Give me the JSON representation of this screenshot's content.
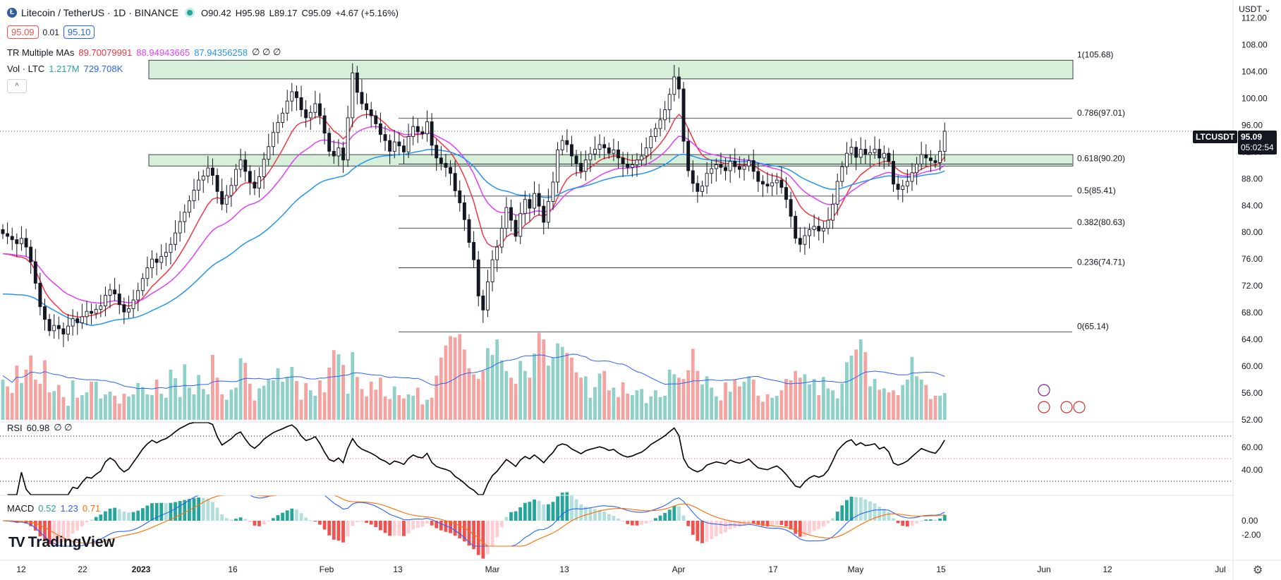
{
  "header": {
    "symbol_title": "Litecoin / TetherUS · 1D · BINANCE",
    "ohlc": {
      "o_label": "O",
      "o": "90.42",
      "h_label": "H",
      "h": "95.98",
      "l_label": "L",
      "l": "89.17",
      "c_label": "C",
      "c": "95.09",
      "change": "+4.67 (+5.16%)"
    },
    "bid": "95.09",
    "spread": "0.01",
    "ask": "95.10",
    "currency": "USDT"
  },
  "indicators": {
    "mas": {
      "name": "TR Multiple MAs",
      "v1": "89.70079991",
      "v2": "88.94943665",
      "v3": "87.94356258",
      "rest": "∅ ∅ ∅"
    },
    "vol": {
      "name": "Vol · LTC",
      "v1": "1.217M",
      "v2": "729.708K"
    },
    "rsi": {
      "name": "RSI",
      "value": "60.98",
      "rest": "∅ ∅"
    },
    "macd": {
      "name": "MACD",
      "v1": "0.52",
      "v2": "1.23",
      "v3": "0.71"
    }
  },
  "last_price": {
    "symbol": "LTCUSDT",
    "price": "95.09",
    "countdown": "05:02:54"
  },
  "branding": {
    "logo_text": "TradingView"
  },
  "colors": {
    "up": "#26a69a",
    "down": "#ef5350",
    "ma_fast": "#f23645",
    "ma_mid": "#e040fb",
    "ma_slow": "#2196f3",
    "vol_up": "#8fd0c8",
    "vol_down": "#f4a3a1",
    "zone_fill": "#d7efd9",
    "rsi_line": "#000000",
    "macd_line": "#2962ff",
    "signal_line": "#ff6d00"
  },
  "chart_data": {
    "type": "candlestick",
    "x_ticks": [
      "12",
      "22",
      "2023",
      "16",
      "Feb",
      "13",
      "Mar",
      "13",
      "Apr",
      "17",
      "May",
      "15",
      "Jun",
      "12",
      "Jul"
    ],
    "y_ticks": [
      "112.00",
      "108.00",
      "104.00",
      "100.00",
      "96.00",
      "92.00",
      "88.00",
      "84.00",
      "80.00",
      "76.00",
      "72.00",
      "68.00",
      "64.00",
      "60.00",
      "56.00",
      "52.00"
    ],
    "ylim": [
      52,
      113
    ],
    "fib_levels": [
      {
        "label": "1(105.68)",
        "value": 105.68
      },
      {
        "label": "0.786(97.01)",
        "value": 97.01
      },
      {
        "label": "0.618(90.20)",
        "value": 90.2
      },
      {
        "label": "0.5(85.41)",
        "value": 85.41
      },
      {
        "label": "0.382(80.63)",
        "value": 80.63
      },
      {
        "label": "0.236(74.71)",
        "value": 74.71
      },
      {
        "label": "0(65.14)",
        "value": 65.14
      }
    ],
    "zones": [
      {
        "from": 102.9,
        "to": 105.7
      },
      {
        "from": 89.9,
        "to": 91.6
      }
    ],
    "rsi_ticks": [
      "60.00",
      "40.00"
    ],
    "rsi_levels": [
      70,
      50,
      30
    ],
    "macd_ticks": [
      "0.00",
      "-2.00"
    ],
    "closes": [
      79.8,
      79.4,
      78.9,
      78.3,
      79.1,
      77.8,
      75.6,
      72.4,
      68.9,
      67.0,
      65.3,
      66.1,
      65.6,
      64.8,
      66.0,
      67.1,
      66.5,
      67.4,
      68.2,
      67.9,
      68.5,
      69.0,
      70.6,
      71.4,
      70.8,
      69.2,
      68.1,
      68.6,
      69.9,
      71.3,
      73.1,
      74.7,
      76.0,
      75.5,
      76.4,
      77.0,
      78.2,
      79.9,
      81.6,
      83.0,
      84.7,
      86.3,
      87.8,
      88.4,
      89.6,
      88.5,
      86.1,
      84.2,
      85.5,
      87.0,
      89.4,
      90.8,
      89.1,
      87.5,
      86.6,
      88.3,
      90.9,
      92.8,
      94.9,
      96.4,
      97.8,
      99.6,
      101.0,
      100.1,
      98.3,
      97.1,
      97.9,
      99.2,
      97.4,
      94.8,
      92.1,
      91.4,
      92.6,
      90.8,
      97.1,
      103.8,
      100.9,
      99.2,
      98.3,
      97.4,
      96.2,
      94.6,
      93.7,
      92.1,
      93.5,
      92.9,
      92.0,
      94.3,
      95.8,
      95.0,
      94.7,
      96.5,
      93.0,
      91.1,
      90.3,
      89.7,
      88.8,
      86.2,
      84.4,
      81.9,
      78.5,
      75.9,
      70.5,
      68.4,
      72.6,
      75.9,
      77.8,
      80.6,
      83.7,
      81.8,
      79.4,
      82.8,
      84.9,
      83.6,
      85.8,
      83.9,
      81.5,
      84.6,
      87.5,
      92.3,
      93.7,
      93.1,
      91.4,
      90.3,
      89.1,
      90.8,
      91.7,
      92.4,
      93.1,
      92.6,
      91.8,
      92.3,
      91.1,
      90.2,
      89.7,
      90.1,
      90.8,
      91.4,
      92.6,
      94.3,
      95.5,
      96.8,
      98.3,
      100.6,
      103.2,
      101.4,
      93.6,
      89.2,
      87.3,
      86.1,
      86.9,
      88.8,
      89.5,
      90.1,
      89.7,
      89.2,
      90.6,
      89.8,
      89.4,
      89.9,
      90.7,
      89.1,
      87.6,
      87.2,
      86.9,
      87.4,
      87.8,
      86.7,
      84.9,
      82.4,
      79.1,
      78.2,
      79.5,
      80.4,
      80.9,
      80.2,
      80.6,
      81.8,
      84.2,
      87.6,
      89.8,
      91.8,
      92.7,
      91.2,
      92.4,
      91.6,
      91.9,
      92.4,
      91.1,
      91.8,
      90.6,
      87.2,
      86.4,
      86.9,
      87.6,
      88.9,
      90.2,
      91.6,
      91.1,
      90.7,
      90.4,
      92.1,
      95.09
    ],
    "volumes": [
      58.0,
      57.0,
      56.0,
      60.1,
      57.5,
      59.5,
      61.6,
      58.0,
      57.4,
      60.9,
      56.1,
      56.3,
      57.2,
      55.4,
      54.1,
      57.9,
      55.3,
      55.7,
      56.1,
      57.7,
      57.7,
      55.2,
      55.8,
      56.2,
      55.6,
      54.4,
      55.9,
      55.5,
      55.8,
      57.5,
      56.9,
      55.8,
      55.7,
      58.0,
      55.9,
      55.3,
      59.5,
      58.2,
      55.4,
      60.3,
      56.8,
      55.8,
      58.7,
      56.6,
      55.8,
      61.7,
      58.3,
      55.8,
      55.0,
      56.5,
      56.8,
      61.2,
      60.5,
      57.4,
      54.9,
      56.7,
      57.1,
      58.0,
      57.9,
      59.7,
      57.7,
      58.4,
      59.9,
      57.8,
      55.0,
      57.5,
      56.4,
      55.6,
      57.9,
      56.1,
      59.8,
      62.4,
      61.8,
      60.2,
      55.9,
      62.1,
      58.4,
      56.6,
      55.5,
      57.7,
      56.5,
      58.3,
      55.5,
      55.1,
      57.0,
      55.7,
      55.2,
      55.8,
      55.6,
      56.8,
      54.3,
      55.0,
      55.3,
      58.6,
      61.3,
      63.1,
      64.5,
      64.3,
      64.8,
      62.5,
      59.7,
      58.8,
      58.1,
      59.3,
      62.7,
      61.7,
      64.0,
      60.9,
      59.3,
      58.3,
      57.4,
      60.8,
      59.3,
      58.3,
      61.9,
      65.0,
      64.0,
      60.1,
      61.3,
      63.4,
      62.9,
      62.0,
      61.3,
      59.1,
      58.3,
      58.5,
      55.3,
      56.9,
      58.9,
      59.3,
      56.4,
      56.8,
      55.4,
      57.6,
      55.9,
      55.7,
      56.4,
      56.6,
      54.5,
      55.5,
      56.4,
      55.4,
      55.6,
      59.5,
      58.8,
      58.3,
      58.1,
      59.4,
      62.6,
      59.3,
      57.3,
      58.5,
      56.8,
      55.5,
      54.9,
      57.6,
      56.2,
      58.0,
      57.0,
      57.7,
      58.5,
      58.0,
      55.6,
      54.7,
      55.8,
      55.3,
      55.6,
      56.4,
      58.1,
      57.9,
      59.3,
      58.3,
      58.8,
      57.3,
      58.1,
      55.7,
      58.4,
      56.7,
      56.4,
      55.2,
      57.4,
      60.6,
      61.6,
      62.5,
      64.0,
      62.1,
      57.0,
      58.1,
      56.5,
      56.7,
      56.1,
      56.4,
      55.7,
      57.2,
      58.0,
      61.4,
      58.5,
      58.0,
      57.2,
      55.1,
      55.6,
      55.6,
      56.0,
      56.3,
      55.6,
      56.0,
      61.6
    ],
    "series": [
      {
        "name": "MA 89.70079991",
        "color": "#f23645"
      },
      {
        "name": "MA 88.94943665",
        "color": "#e040fb"
      },
      {
        "name": "MA 87.94356258",
        "color": "#2196f3"
      }
    ]
  }
}
